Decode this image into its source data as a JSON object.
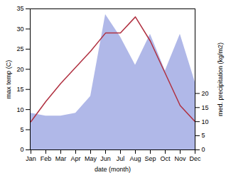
{
  "chart_data": {
    "type": "line",
    "categories": [
      "Jan",
      "Feb",
      "Mar",
      "Apr",
      "May",
      "Jun",
      "Jul",
      "Aug",
      "Sep",
      "Oct",
      "Nov",
      "Dec"
    ],
    "xlabel": "date (month)",
    "ylabel": "max temp (C)",
    "y2label": "med. precipitation (kg/m2)",
    "ylim": [
      0,
      35
    ],
    "yticks": [
      0,
      5,
      10,
      15,
      20,
      25,
      30,
      35
    ],
    "y2lim": [
      0,
      50
    ],
    "y2ticks": [
      0,
      5,
      10,
      15,
      20
    ],
    "series": [
      {
        "type": "area",
        "axis": "y2",
        "color": "#b0b8e8",
        "values": [
          13,
          12,
          12,
          13,
          19,
          48,
          40,
          30,
          41,
          28,
          41,
          24
        ]
      },
      {
        "type": "line",
        "color": "#b03040",
        "values": [
          7.0,
          12.0,
          16.5,
          20.5,
          24.5,
          29.0,
          29.0,
          33.0,
          27.0,
          19.0,
          11.0,
          7.0
        ]
      }
    ]
  }
}
